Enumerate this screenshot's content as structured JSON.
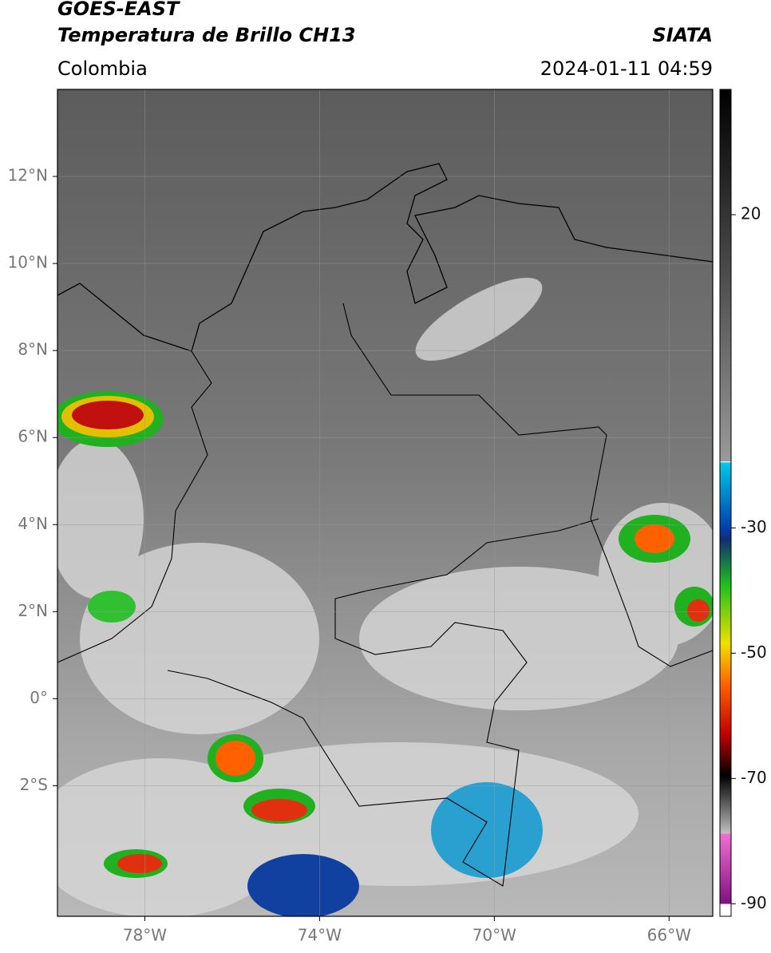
{
  "header": {
    "title": "GOES-EAST",
    "subtitle": "Temperatura de Brillo CH13",
    "region": "Colombia",
    "source": "SIATA",
    "datetime": "2024-01-11 04:59"
  },
  "map": {
    "xlim": [
      -80,
      -65
    ],
    "ylim": [
      -5,
      14
    ],
    "xticks": [
      {
        "value": -78,
        "label": "78°W"
      },
      {
        "value": -74,
        "label": "74°W"
      },
      {
        "value": -70,
        "label": "70°W"
      },
      {
        "value": -66,
        "label": "66°W"
      }
    ],
    "yticks": [
      {
        "value": 12,
        "label": "12°N"
      },
      {
        "value": 10,
        "label": "10°N"
      },
      {
        "value": 8,
        "label": "8°N"
      },
      {
        "value": 6,
        "label": "6°N"
      },
      {
        "value": 4,
        "label": "4°N"
      },
      {
        "value": 2,
        "label": "2°N"
      },
      {
        "value": 0,
        "label": "0°"
      },
      {
        "value": -2,
        "label": "2°S"
      }
    ]
  },
  "colorbar": {
    "lim": [
      -92,
      40
    ],
    "ticks": [
      20,
      -30,
      -50,
      -70,
      -90
    ]
  }
}
